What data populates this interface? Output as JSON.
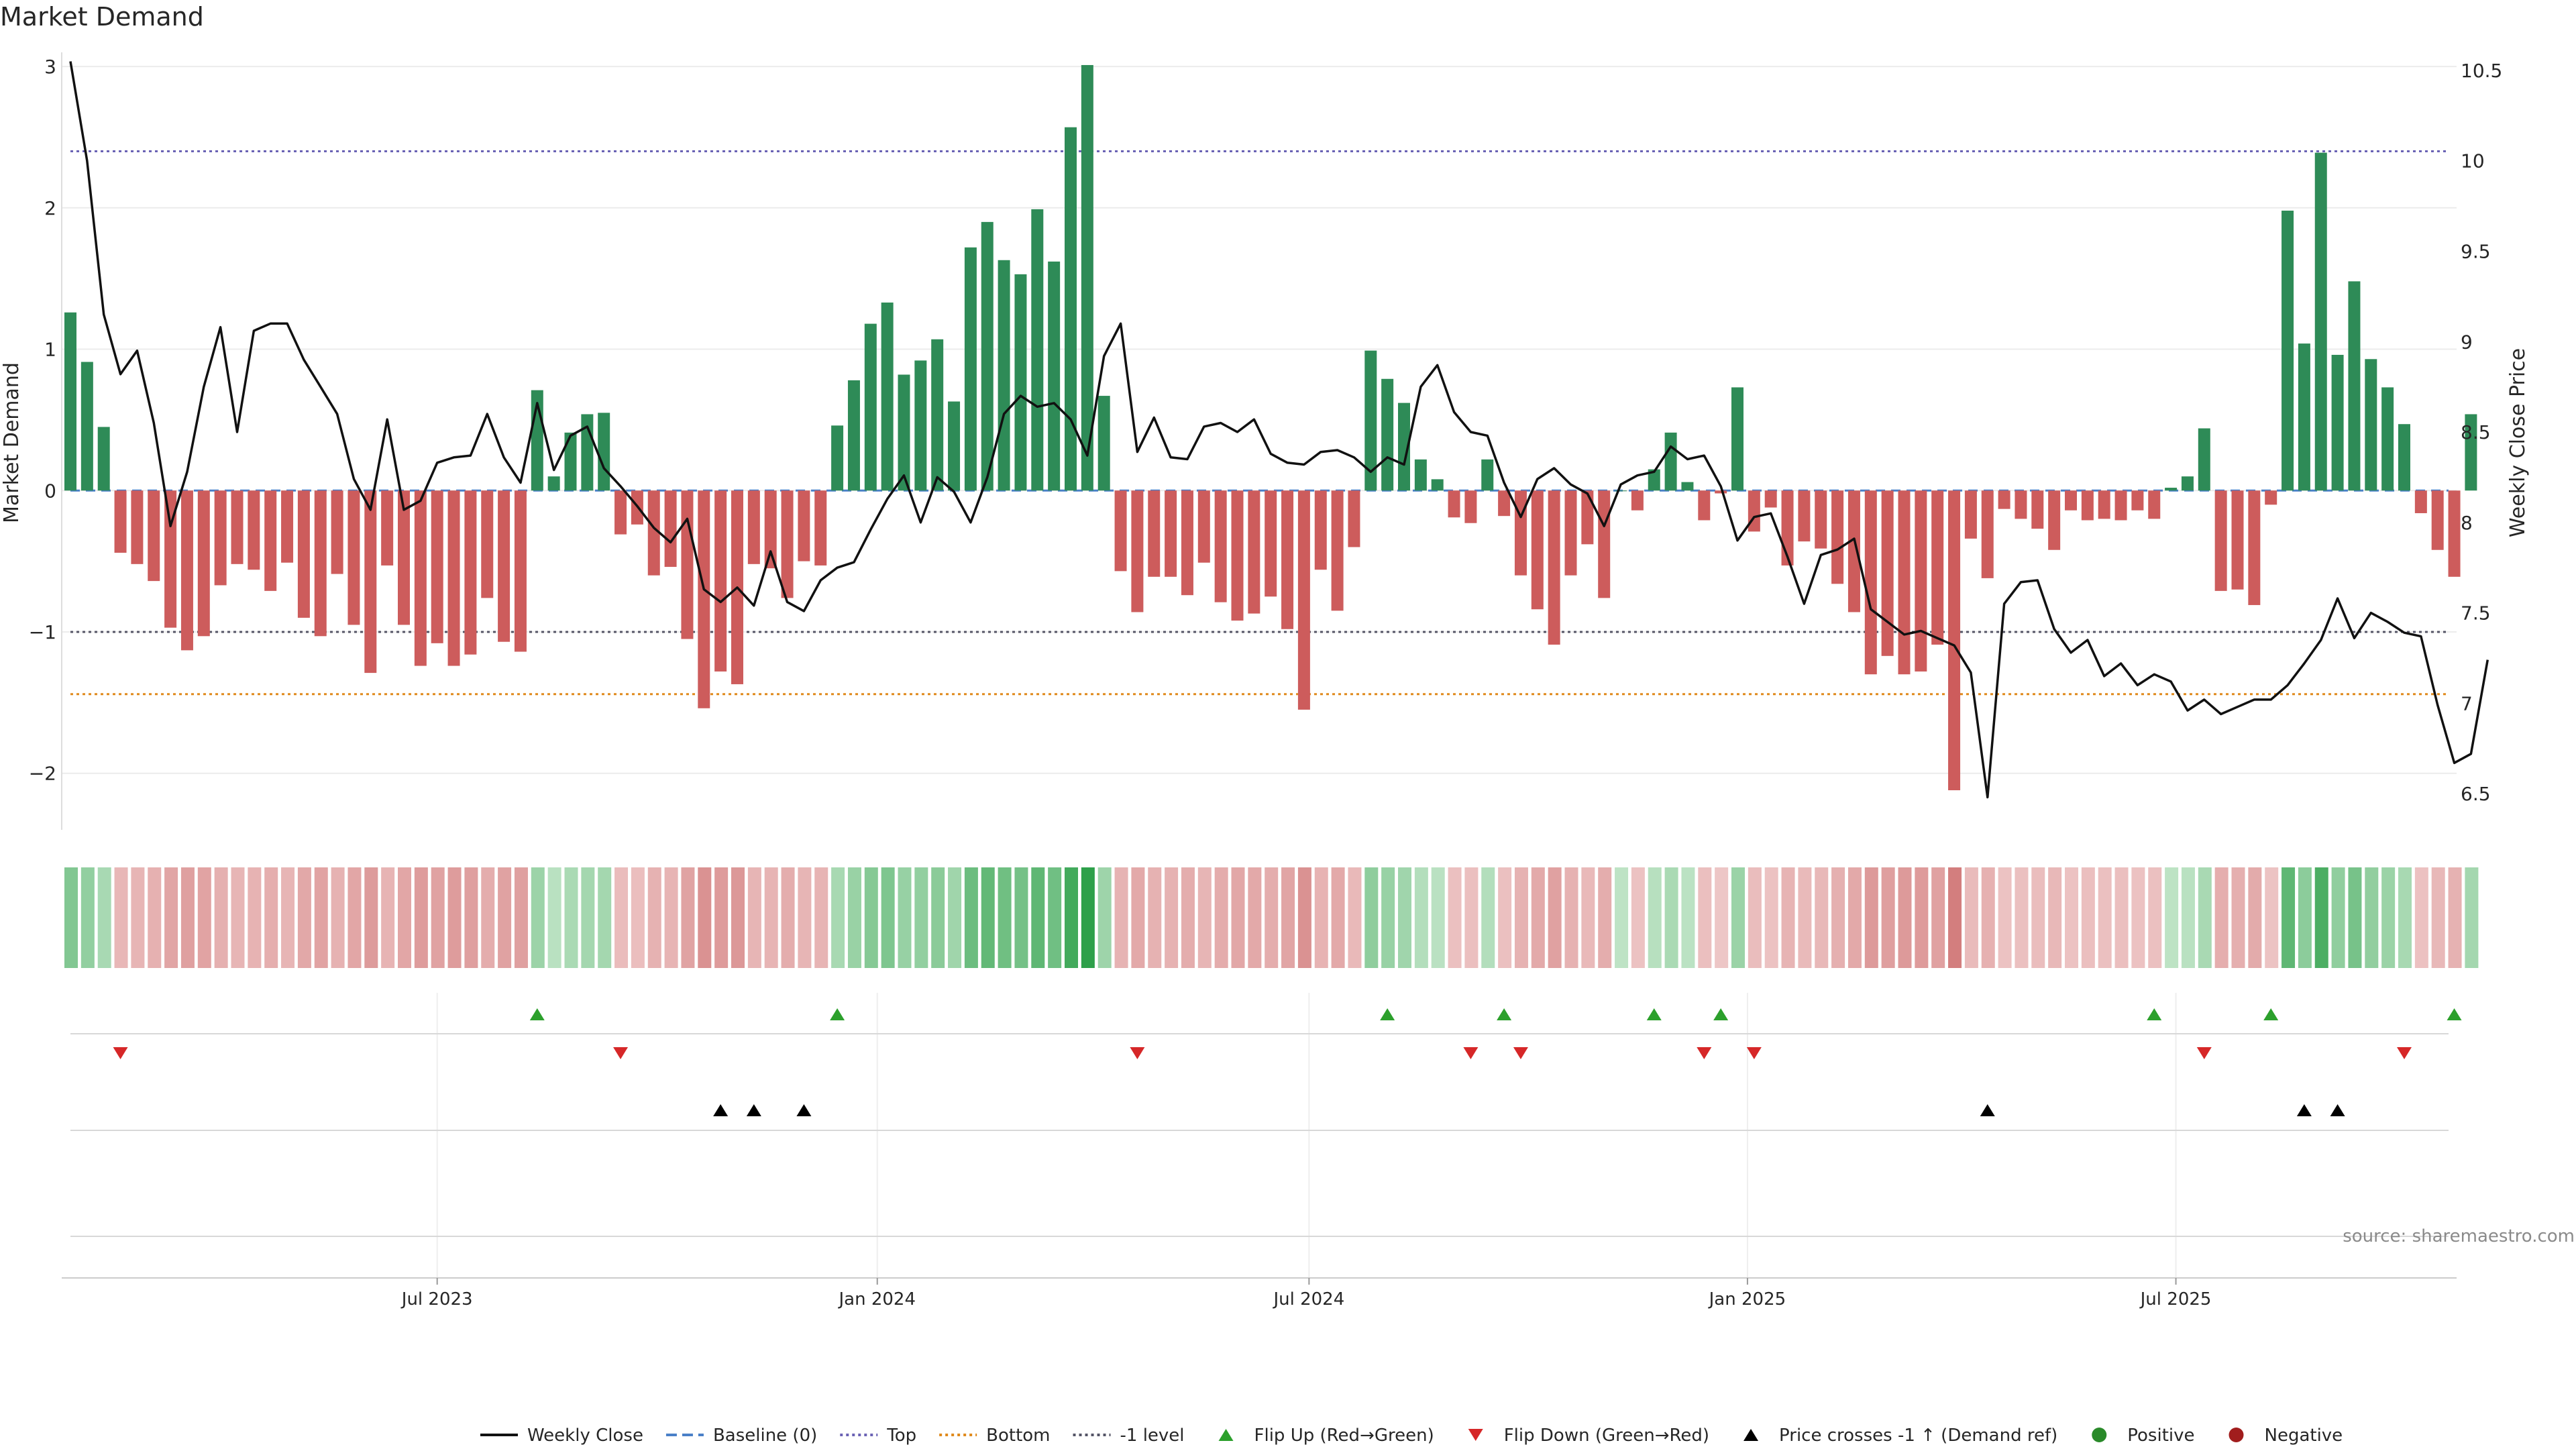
{
  "chart_data": {
    "type": "bar",
    "title": "Market Demand",
    "ylabel_left": "Market Demand",
    "ylabel_right": "Weekly Close Price",
    "left_ticks": [
      3,
      2,
      1,
      0,
      -1,
      -2
    ],
    "left_tick_labels": [
      "3",
      "2",
      "1",
      "0",
      "−1",
      "−2"
    ],
    "ylim_left": [
      -2.4,
      3.1
    ],
    "right_ticks": [
      10.5,
      10,
      9.5,
      9,
      8.5,
      8,
      7.5,
      7,
      6.5
    ],
    "right_tick_labels": [
      "10.5",
      "10",
      "9.5",
      "9",
      "8.5",
      "8",
      "7.5",
      "7",
      "6.5"
    ],
    "ylim_right": [
      6.3,
      10.6
    ],
    "x_tick_labels": [
      "Jul 2023",
      "Jan 2024",
      "Jul 2024",
      "Jan 2025",
      "Jul 2025"
    ],
    "x_tick_weeks": [
      22,
      48.4,
      74.3,
      100.6,
      126.3
    ],
    "reference_lines": {
      "top": 2.4,
      "bottom": -1.44,
      "minus_one": -1
    },
    "demand": [
      1.26,
      0.91,
      0.45,
      -0.44,
      -0.52,
      -0.64,
      -0.97,
      -1.13,
      -1.03,
      -0.67,
      -0.52,
      -0.56,
      -0.71,
      -0.51,
      -0.9,
      -1.03,
      -0.59,
      -0.95,
      -1.29,
      -0.53,
      -0.95,
      -1.24,
      -1.08,
      -1.24,
      -1.16,
      -0.76,
      -1.07,
      -1.14,
      0.71,
      0.1,
      0.41,
      0.54,
      0.55,
      -0.31,
      -0.24,
      -0.6,
      -0.54,
      -1.05,
      -1.54,
      -1.28,
      -1.37,
      -0.52,
      -0.55,
      -0.76,
      -0.5,
      -0.53,
      0.46,
      0.78,
      1.18,
      1.33,
      0.82,
      0.92,
      1.07,
      0.63,
      1.72,
      1.9,
      1.63,
      1.53,
      1.99,
      1.62,
      2.57,
      3.01,
      0.67,
      -0.57,
      -0.86,
      -0.61,
      -0.61,
      -0.74,
      -0.51,
      -0.79,
      -0.92,
      -0.87,
      -0.75,
      -0.98,
      -1.55,
      -0.56,
      -0.85,
      -0.4,
      0.99,
      0.79,
      0.62,
      0.22,
      0.08,
      -0.19,
      -0.23,
      0.22,
      -0.18,
      -0.6,
      -0.84,
      -1.09,
      -0.6,
      -0.38,
      -0.76,
      0.0,
      -0.14,
      0.15,
      0.41,
      0.06,
      -0.21,
      -0.02,
      0.73,
      -0.29,
      -0.12,
      -0.53,
      -0.36,
      -0.41,
      -0.66,
      -0.86,
      -1.3,
      -1.17,
      -1.3,
      -1.28,
      -1.09,
      -2.12,
      -0.34,
      -0.62,
      -0.13,
      -0.2,
      -0.27,
      -0.42,
      -0.14,
      -0.21,
      -0.2,
      -0.21,
      -0.14,
      -0.2,
      0.02,
      0.1,
      0.44,
      -0.71,
      -0.7,
      -0.81,
      -0.1,
      1.98,
      1.04,
      2.39,
      0.96,
      1.48,
      0.93,
      0.73,
      0.47,
      -0.16,
      -0.42,
      -0.61,
      0.54
    ],
    "weekly_close": [
      10.55,
      10.0,
      9.15,
      8.82,
      8.95,
      8.55,
      7.98,
      8.28,
      8.75,
      9.08,
      8.5,
      9.06,
      9.1,
      9.1,
      8.9,
      8.75,
      8.6,
      8.24,
      8.07,
      8.57,
      8.07,
      8.12,
      8.33,
      8.36,
      8.37,
      8.6,
      8.36,
      8.22,
      8.66,
      8.29,
      8.48,
      8.53,
      8.3,
      8.2,
      8.09,
      7.97,
      7.89,
      8.02,
      7.63,
      7.56,
      7.64,
      7.54,
      7.84,
      7.56,
      7.51,
      7.68,
      7.75,
      7.78,
      7.96,
      8.13,
      8.26,
      8.0,
      8.25,
      8.17,
      8.0,
      8.25,
      8.6,
      8.7,
      8.64,
      8.66,
      8.57,
      8.37,
      8.92,
      9.1,
      8.39,
      8.58,
      8.36,
      8.35,
      8.53,
      8.55,
      8.5,
      8.57,
      8.38,
      8.33,
      8.32,
      8.39,
      8.4,
      8.36,
      8.28,
      8.36,
      8.32,
      8.75,
      8.87,
      8.61,
      8.5,
      8.48,
      8.22,
      8.03,
      8.24,
      8.3,
      8.21,
      8.16,
      7.98,
      8.21,
      8.26,
      8.28,
      8.42,
      8.35,
      8.37,
      8.2,
      7.9,
      8.03,
      8.05,
      7.81,
      7.55,
      7.82,
      7.85,
      7.91,
      7.52,
      7.45,
      7.38,
      7.4,
      7.36,
      7.32,
      7.17,
      6.48,
      7.55,
      7.67,
      7.68,
      7.41,
      7.28,
      7.35,
      7.15,
      7.22,
      7.1,
      7.16,
      7.12,
      6.96,
      7.02,
      6.94,
      6.98,
      7.02,
      7.02,
      7.1,
      7.22,
      7.35,
      7.58,
      7.36,
      7.5,
      7.45,
      7.39,
      7.37,
      6.99,
      6.67,
      6.72,
      7.24
    ],
    "flip_up_weeks": [
      28,
      46,
      79,
      86,
      95,
      99,
      125,
      132,
      143
    ],
    "flip_down_weeks": [
      3,
      33,
      64,
      84,
      87,
      98,
      101,
      128,
      140
    ],
    "price_cross_weeks": [
      39,
      41,
      44,
      115,
      134,
      136
    ],
    "source": "source: sharemaestro.com",
    "legend": [
      {
        "label": "Weekly Close",
        "kind": "line",
        "color": "#111111"
      },
      {
        "label": "Baseline (0)",
        "kind": "dash",
        "color": "#4a80c8"
      },
      {
        "label": "Top",
        "kind": "dot",
        "color": "#6b63b5"
      },
      {
        "label": "Bottom",
        "kind": "dot",
        "color": "#e08a1c"
      },
      {
        "label": "-1 level",
        "kind": "dot",
        "color": "#555566"
      },
      {
        "label": "Flip Up (Red→Green)",
        "kind": "tri-up",
        "color": "#2ca02c"
      },
      {
        "label": "Flip Down (Green→Red)",
        "kind": "tri-down",
        "color": "#d62728"
      },
      {
        "label": "Price crosses -1 ↑ (Demand ref)",
        "kind": "tri-up",
        "color": "#000000"
      },
      {
        "label": "Positive",
        "kind": "circle",
        "color": "#2a8a2a"
      },
      {
        "label": "Negative",
        "kind": "circle",
        "color": "#a11d1d"
      }
    ],
    "colors": {
      "positive_bar": "#2e8b57",
      "negative_bar": "#cd5c5c",
      "grid": "#ececec",
      "axis": "#cccccc"
    }
  }
}
